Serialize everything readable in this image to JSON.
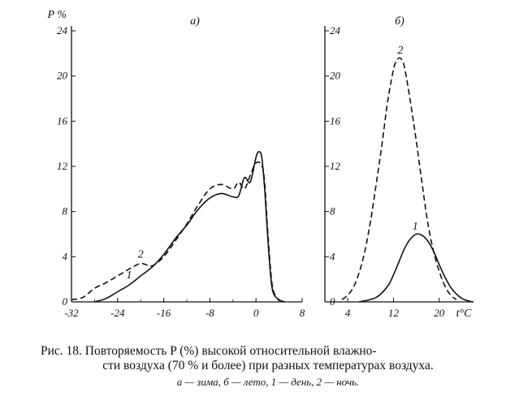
{
  "chart_data": [
    {
      "panel_label": "а)",
      "type": "line",
      "ylabel": "P %",
      "xlim": [
        -32,
        8
      ],
      "ylim": [
        0,
        24
      ],
      "xticks": [
        "-32",
        "-24",
        "-16",
        "-8",
        "0",
        "8"
      ],
      "yticks": [
        "0",
        "4",
        "8",
        "12",
        "16",
        "20",
        "24"
      ],
      "series": [
        {
          "name": "1",
          "dash": false,
          "label_at": [
            -22,
            2.1
          ],
          "x": [
            -28,
            -26,
            -24,
            -22,
            -20,
            -18,
            -16,
            -14,
            -12,
            -10,
            -8,
            -6,
            -4,
            -3,
            -2,
            -1,
            0,
            0.5,
            1,
            1.5,
            2,
            2.5,
            3,
            4,
            5
          ],
          "y": [
            0,
            0.3,
            0.9,
            1.5,
            2.3,
            3.1,
            4.2,
            5.6,
            6.8,
            8.2,
            9.2,
            9.6,
            9.3,
            9.4,
            11.0,
            10.6,
            12.8,
            13.3,
            12.8,
            10.0,
            6.0,
            2.5,
            0.8,
            0.2,
            0
          ]
        },
        {
          "name": "2",
          "dash": true,
          "label_at": [
            -20,
            3.9
          ],
          "x": [
            -32,
            -30,
            -28,
            -26,
            -24,
            -22,
            -20,
            -18,
            -16,
            -14,
            -12,
            -10,
            -8,
            -6,
            -4,
            -3,
            -2,
            -1,
            0,
            1,
            1.5,
            2,
            2.5,
            3,
            4
          ],
          "y": [
            0.2,
            0.4,
            1.2,
            1.7,
            2.3,
            2.9,
            3.4,
            3.2,
            4.0,
            5.4,
            6.9,
            8.6,
            10.0,
            10.4,
            10.0,
            10.6,
            10.0,
            11.2,
            12.3,
            12.1,
            10.5,
            6.5,
            3.0,
            1.0,
            0.1
          ]
        }
      ]
    },
    {
      "panel_label": "б)",
      "type": "line",
      "xlabel": "t°C",
      "xlim": [
        0,
        26
      ],
      "ylim": [
        0,
        24
      ],
      "xticks": [
        "4",
        "12",
        "20"
      ],
      "yticks": [
        "0",
        "4",
        "8",
        "12",
        "16",
        "20",
        "24"
      ],
      "series": [
        {
          "name": "1",
          "dash": false,
          "label_at": [
            15.8,
            6.4
          ],
          "x": [
            6,
            9,
            11,
            12,
            13,
            14,
            15,
            16,
            17,
            18,
            19,
            20,
            21,
            22,
            23,
            24,
            25,
            26
          ],
          "y": [
            0,
            0.4,
            1.4,
            2.4,
            3.6,
            4.8,
            5.6,
            6.0,
            5.9,
            5.4,
            4.5,
            3.3,
            2.2,
            1.3,
            0.7,
            0.3,
            0.1,
            0
          ]
        },
        {
          "name": "2",
          "dash": true,
          "label_at": [
            13.2,
            22.0
          ],
          "x": [
            3,
            4,
            5,
            6,
            7,
            8,
            9,
            10,
            11,
            12,
            12.5,
            13,
            13.5,
            14,
            15,
            16,
            17,
            18,
            19,
            20,
            21,
            22,
            23
          ],
          "y": [
            0.2,
            0.6,
            1.3,
            2.6,
            4.5,
            7.2,
            10.5,
            14.0,
            17.8,
            20.6,
            21.3,
            21.6,
            21.4,
            20.6,
            17.6,
            14.2,
            10.5,
            7.0,
            4.5,
            2.7,
            1.4,
            0.6,
            0.2
          ]
        }
      ]
    }
  ],
  "caption": {
    "line1": "Рис. 18. Повторяемость P (%) высокой относительной влажно-",
    "line2": "сти воздуха (70 % и более) при разных температурах воздуха.",
    "line3": "а — зима, б — лето, 1 — день, 2 — ночь."
  }
}
